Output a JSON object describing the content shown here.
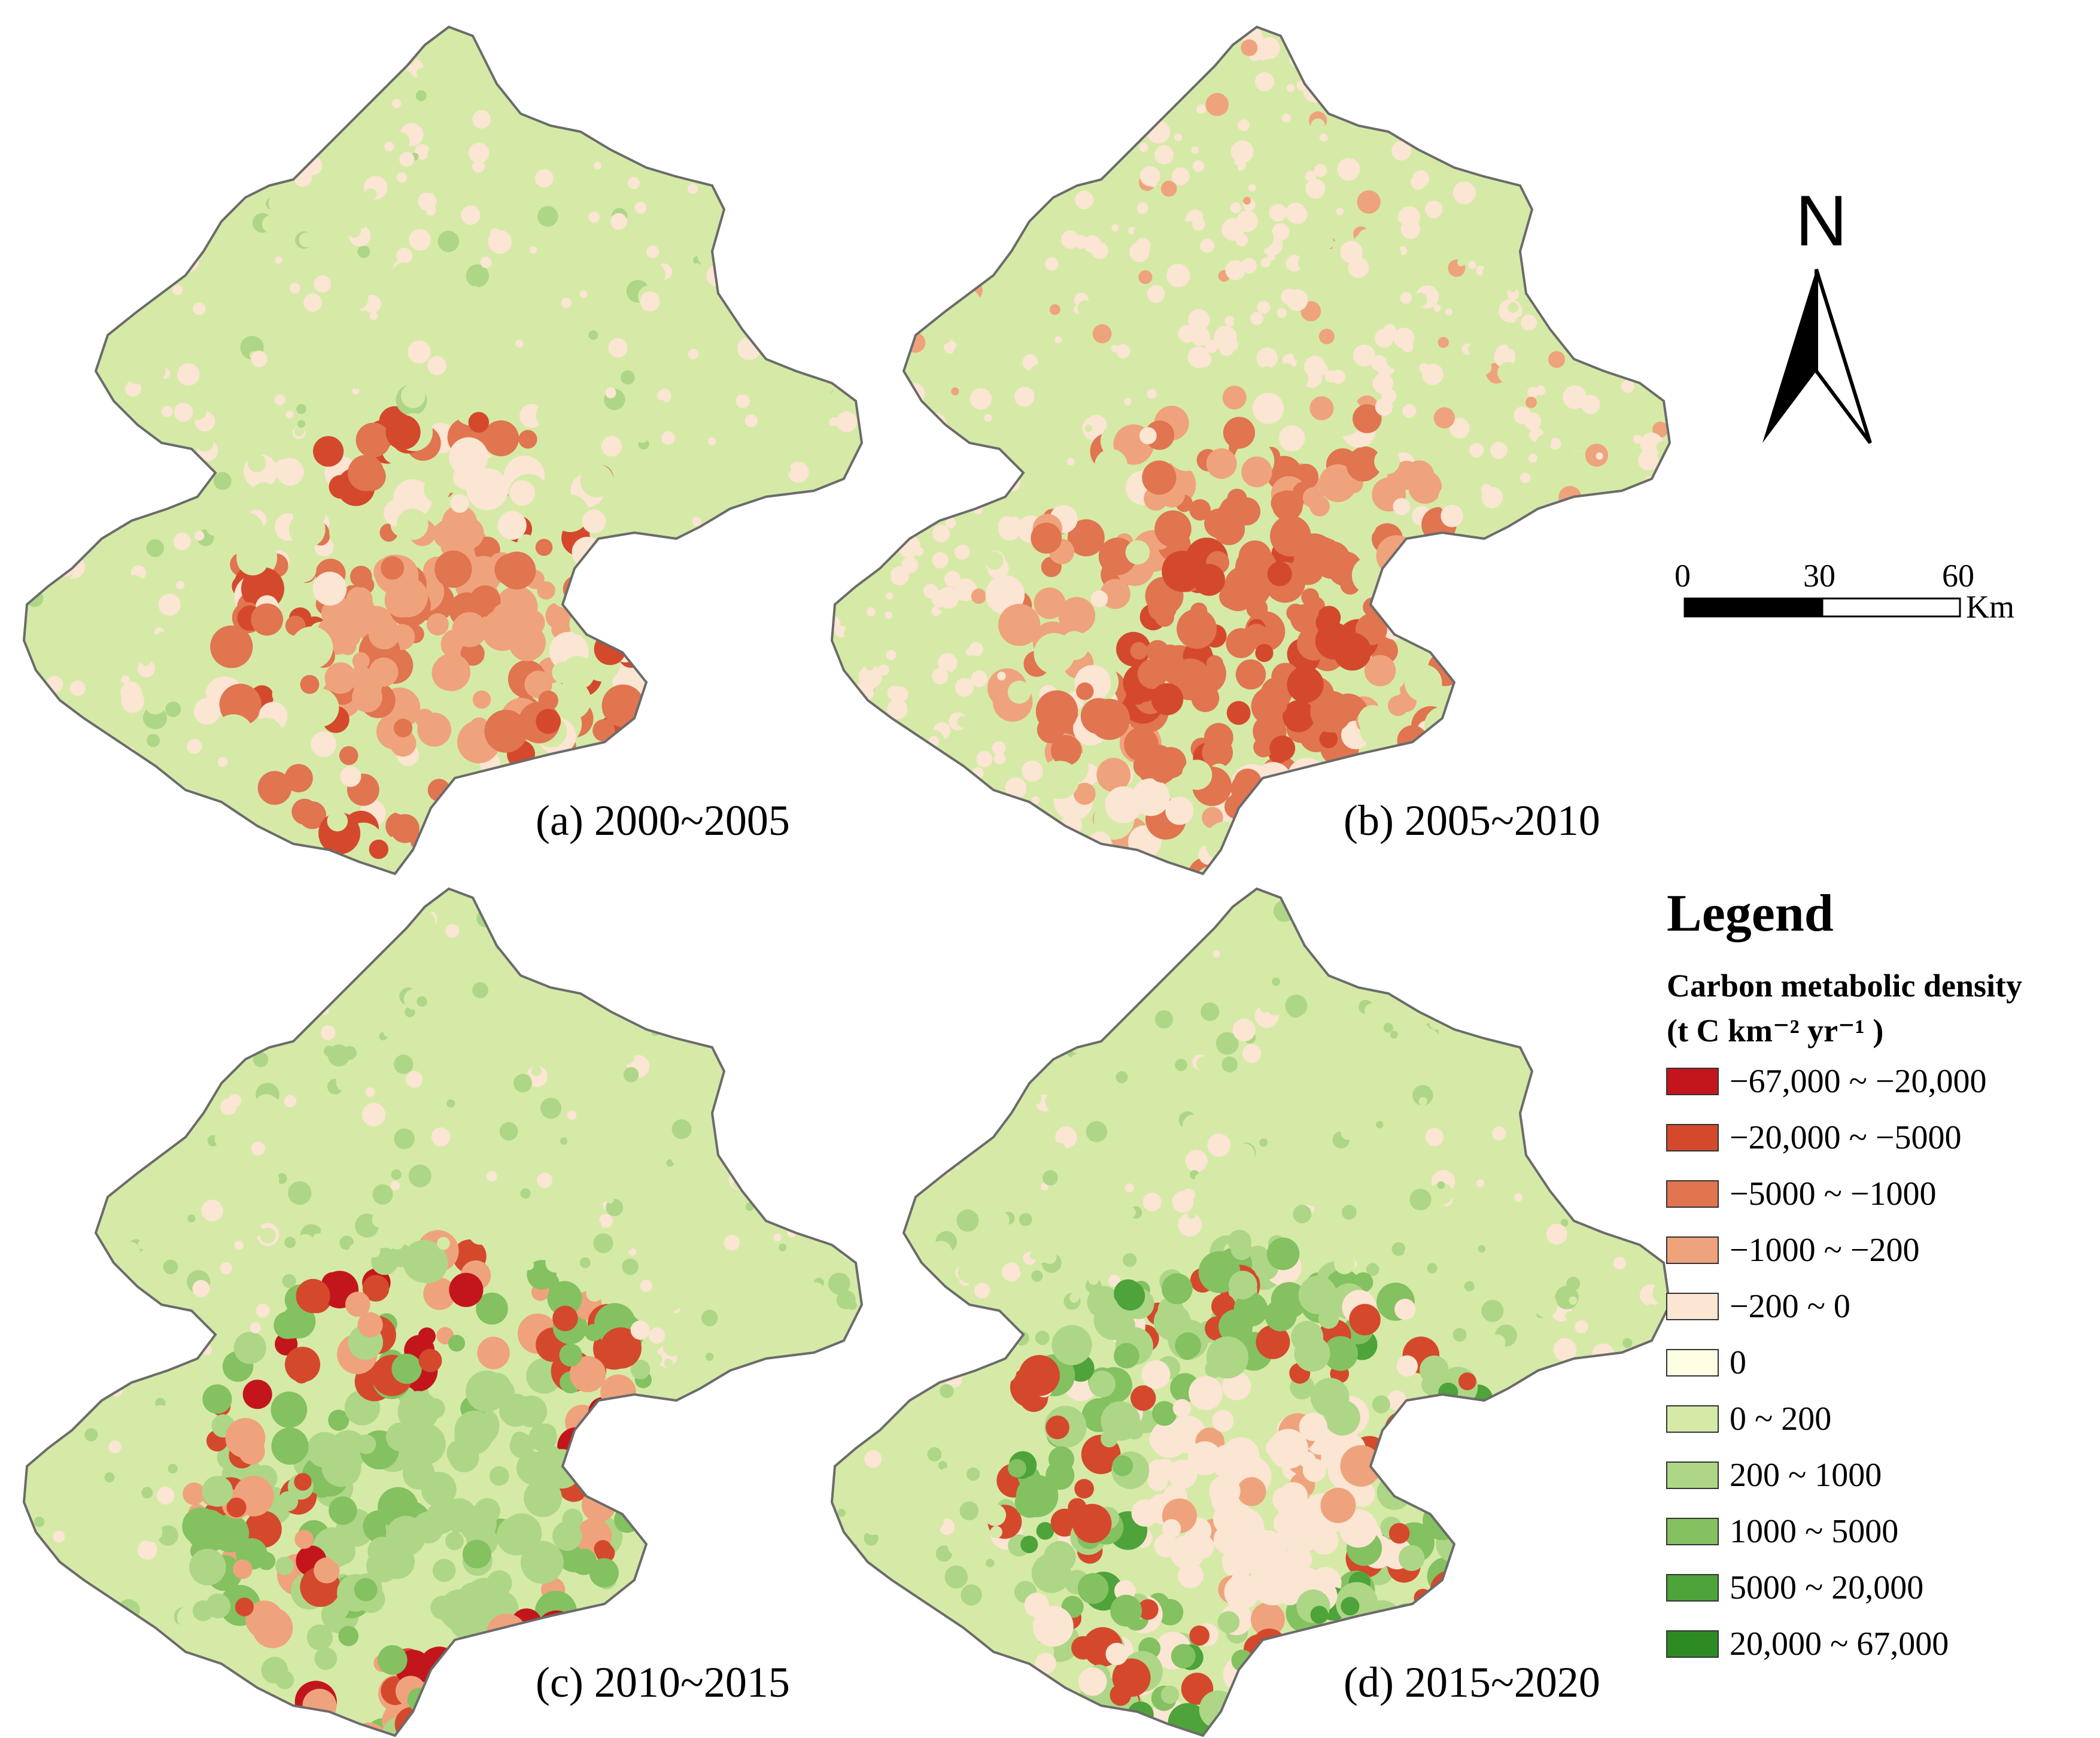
{
  "panels": [
    {
      "id": "a",
      "label": "(a) 2000~2005",
      "pattern": 0
    },
    {
      "id": "b",
      "label": "(b) 2005~2010",
      "pattern": 1
    },
    {
      "id": "c",
      "label": "(c) 2010~2015",
      "pattern": 2
    },
    {
      "id": "d",
      "label": "(d) 2015~2020",
      "pattern": 3
    }
  ],
  "north_arrow": {
    "letter": "N"
  },
  "scale_bar": {
    "ticks": [
      "0",
      "30",
      "60"
    ],
    "unit": "Km"
  },
  "legend": {
    "title": "Legend",
    "subtitle_line1": "Carbon metabolic density",
    "subtitle_line2": "(t C km⁻² yr⁻¹ )",
    "classes": [
      {
        "label": "−67,000 ~ −20,000",
        "color": "#c3161c"
      },
      {
        "label": "−20,000 ~ −5000",
        "color": "#d4492c"
      },
      {
        "label": "−5000 ~ −1000",
        "color": "#e07550"
      },
      {
        "label": "−1000 ~ −200",
        "color": "#efa37c"
      },
      {
        "label": "−200 ~ 0",
        "color": "#fbe5d3"
      },
      {
        "label": "0",
        "color": "#fefee3"
      },
      {
        "label": "0 ~ 200",
        "color": "#d5eaa7"
      },
      {
        "label": "200 ~ 1000",
        "color": "#aed687"
      },
      {
        "label": "1000 ~ 5000",
        "color": "#84c160"
      },
      {
        "label": "5000 ~ 20,000",
        "color": "#4ea33a"
      },
      {
        "label": "20,000 ~ 67,000",
        "color": "#2e8b23"
      }
    ]
  }
}
